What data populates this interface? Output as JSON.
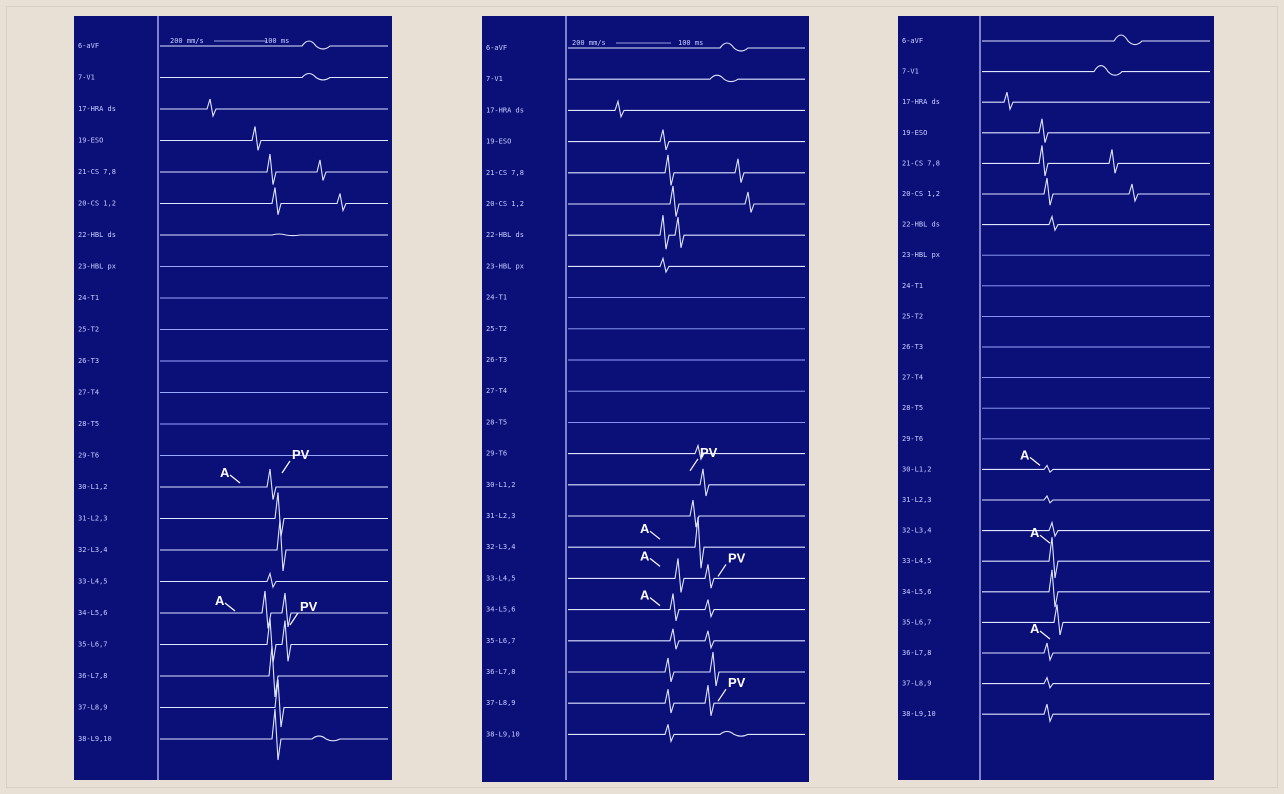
{
  "panels": [
    {
      "scale_text": [
        "200 mm/s",
        "100 ms"
      ],
      "channels": [
        "6-aVF",
        "7-V1",
        "17-HRA ds",
        "19-ESO",
        "21-CS 7,8",
        "20-CS 1,2",
        "22-HBL ds",
        "23-HBL px",
        "24-T1",
        "25-T2",
        "26-T3",
        "27-T4",
        "28-T5",
        "29-T6",
        "30-L1,2",
        "31-L2,3",
        "32-L3,4",
        "33-L4,5",
        "34-L5,6",
        "35-L6,7",
        "36-L7,8",
        "37-L8,9",
        "38-L9,10"
      ],
      "annotations": [
        {
          "text": "A",
          "channel": 14
        },
        {
          "text": "PV",
          "channel": 14
        },
        {
          "text": "A",
          "channel": 18
        },
        {
          "text": "PV",
          "channel": 18
        }
      ]
    },
    {
      "scale_text": [
        "200 mm/s",
        "100 ms"
      ],
      "channels": [
        "6-aVF",
        "7-V1",
        "17-HRA ds",
        "19-ESO",
        "21-CS 7,8",
        "20-CS 1,2",
        "22-HBL ds",
        "23-HBL px",
        "24-T1",
        "25-T2",
        "26-T3",
        "27-T4",
        "28-T5",
        "29-T6",
        "30-L1,2",
        "31-L2,3",
        "32-L3,4",
        "33-L4,5",
        "34-L5,6",
        "35-L6,7",
        "36-L7,8",
        "37-L8,9",
        "38-L9,10"
      ],
      "annotations": [
        {
          "text": "PV",
          "channel": 14
        },
        {
          "text": "A",
          "channel": 16
        },
        {
          "text": "A",
          "channel": 17
        },
        {
          "text": "PV",
          "channel": 17
        },
        {
          "text": "A",
          "channel": 18
        },
        {
          "text": "PV",
          "channel": 21
        }
      ]
    },
    {
      "scale_text": [],
      "channels": [
        "6-aVF",
        "7-V1",
        "17-HRA ds",
        "19-ESO",
        "21-CS 7,8",
        "20-CS 1,2",
        "22-HBL ds",
        "23-HBL px",
        "24-T1",
        "25-T2",
        "26-T3",
        "27-T4",
        "28-T5",
        "29-T6",
        "30-L1,2",
        "31-L2,3",
        "32-L3,4",
        "33-L4,5",
        "34-L5,6",
        "35-L6,7",
        "36-L7,8",
        "37-L8,9",
        "38-L9,10"
      ],
      "annotations": [
        {
          "text": "A",
          "channel": 14
        },
        {
          "text": "A",
          "channel": 17
        },
        {
          "text": "A",
          "channel": 20
        }
      ]
    }
  ],
  "colors": {
    "panel_bg": "#0b0f78",
    "trace": "#dfe6ff",
    "background": "#e8e0d4"
  }
}
